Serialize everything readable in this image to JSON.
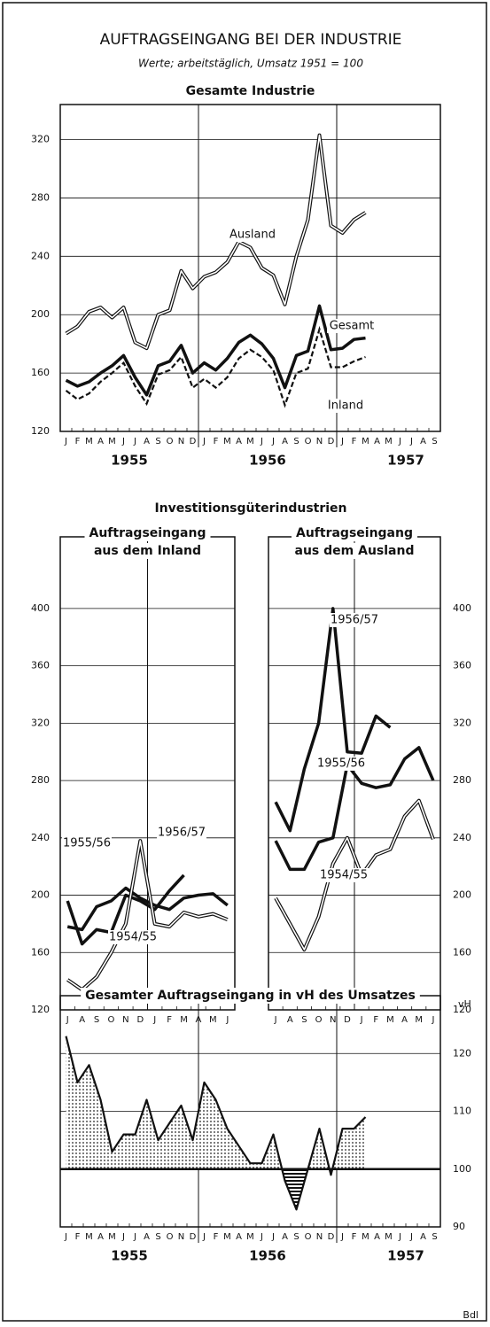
{
  "title": "AUFTRAGSEINGANG BEI DER INDUSTRIE",
  "subtitle": "Werte; arbeitstäglich, Umsatz 1951 = 100",
  "section_title": "Investitionsgüterindustrien",
  "source": "Bdl",
  "chart_data": [
    {
      "type": "line",
      "title": [
        "Gesamte Industrie"
      ],
      "categories": [
        "J",
        "F",
        "M",
        "A",
        "M",
        "J",
        "J",
        "A",
        "S",
        "O",
        "N",
        "D",
        "J",
        "F",
        "M",
        "A",
        "M",
        "J",
        "J",
        "A",
        "S",
        "O",
        "N",
        "D",
        "J",
        "F",
        "M",
        "A",
        "M",
        "J",
        "J",
        "A",
        "S"
      ],
      "years": [
        "1955",
        "1956",
        "1957"
      ],
      "ylim": [
        120,
        344
      ],
      "yticks": [
        120,
        160,
        200,
        240,
        280,
        320
      ],
      "yaxis_side": "left",
      "grid": true,
      "series": [
        {
          "name": "Ausland",
          "color": "#111111",
          "style": "double",
          "values": [
            187,
            192,
            202,
            205,
            198,
            205,
            181,
            177,
            200,
            203,
            230,
            218,
            226,
            229,
            236,
            250,
            246,
            232,
            227,
            207,
            240,
            265,
            323,
            261,
            256,
            265,
            270,
            null,
            null,
            null,
            null,
            null,
            null
          ]
        },
        {
          "name": "Gesamt",
          "color": "#111111",
          "style": "bold",
          "values": [
            155,
            151,
            154,
            160,
            165,
            172,
            157,
            145,
            165,
            168,
            179,
            160,
            167,
            162,
            170,
            181,
            186,
            180,
            170,
            150,
            172,
            175,
            206,
            176,
            177,
            183,
            184,
            null,
            null,
            null,
            null,
            null,
            null
          ]
        },
        {
          "name": "Inland",
          "color": "#111111",
          "style": "dashed",
          "values": [
            148,
            142,
            146,
            154,
            160,
            167,
            151,
            139,
            159,
            162,
            171,
            150,
            156,
            150,
            157,
            170,
            176,
            171,
            162,
            138,
            160,
            163,
            190,
            164,
            164,
            168,
            171,
            null,
            null,
            null,
            null,
            null,
            null
          ]
        }
      ]
    },
    {
      "type": "line",
      "title": [
        "Auftragseingang",
        "aus dem Inland"
      ],
      "categories": [
        "J",
        "A",
        "S",
        "O",
        "N",
        "D",
        "J",
        "F",
        "M",
        "A",
        "M",
        "J"
      ],
      "ylim": [
        120,
        450
      ],
      "yticks": [
        120,
        160,
        200,
        240,
        280,
        320,
        360,
        400
      ],
      "yaxis_side": "left",
      "grid": true,
      "series": [
        {
          "name": "1955/56",
          "color": "#111111",
          "style": "bold",
          "values": [
            178,
            176,
            192,
            196,
            205,
            198,
            193,
            190,
            198,
            200,
            201,
            193
          ]
        },
        {
          "name": "1956/57",
          "color": "#111111",
          "style": "bold",
          "values": [
            196,
            166,
            176,
            174,
            200,
            196,
            190,
            203,
            214,
            null,
            null,
            null
          ]
        },
        {
          "name": "1954/55",
          "color": "#111111",
          "style": "double",
          "values": [
            141,
            134,
            143,
            160,
            180,
            238,
            180,
            178,
            188,
            185,
            187,
            183
          ]
        }
      ]
    },
    {
      "type": "line",
      "title": [
        "Auftragseingang",
        "aus dem Ausland"
      ],
      "categories": [
        "J",
        "A",
        "S",
        "O",
        "N",
        "D",
        "J",
        "F",
        "M",
        "A",
        "M",
        "J"
      ],
      "ylim": [
        120,
        450
      ],
      "yticks": [
        120,
        160,
        200,
        240,
        280,
        320,
        360,
        400
      ],
      "yaxis_side": "right",
      "grid": true,
      "series": [
        {
          "name": "1956/57",
          "color": "#111111",
          "style": "bold",
          "values": [
            265,
            245,
            288,
            320,
            400,
            300,
            299,
            325,
            317,
            null,
            null,
            null
          ]
        },
        {
          "name": "1955/56",
          "color": "#111111",
          "style": "bold",
          "values": [
            238,
            218,
            218,
            237,
            240,
            291,
            278,
            275,
            277,
            295,
            303,
            280
          ]
        },
        {
          "name": "1954/55",
          "color": "#111111",
          "style": "double",
          "values": [
            198,
            180,
            162,
            185,
            222,
            240,
            214,
            228,
            232,
            255,
            266,
            239
          ]
        }
      ]
    },
    {
      "type": "area",
      "title": [
        "Gesamter Auftragseingang in vH des Umsatzes"
      ],
      "categories": [
        "J",
        "F",
        "M",
        "A",
        "M",
        "J",
        "J",
        "A",
        "S",
        "O",
        "N",
        "D",
        "J",
        "F",
        "M",
        "A",
        "M",
        "J",
        "J",
        "A",
        "S",
        "O",
        "N",
        "D",
        "J",
        "F",
        "M",
        "A",
        "M",
        "J",
        "J",
        "A",
        "S"
      ],
      "years": [
        "1955",
        "1956",
        "1957"
      ],
      "ylim": [
        90,
        130
      ],
      "yticks": [
        90,
        100,
        110,
        120
      ],
      "yaxis_side": "right",
      "y_unit_label": "vH",
      "grid": true,
      "baseline": 100,
      "color": "#111111",
      "values": [
        123,
        115,
        118,
        112,
        103,
        106,
        106,
        112,
        105,
        108,
        111,
        105,
        115,
        112,
        107,
        104,
        101,
        101,
        106,
        98,
        93,
        100,
        107,
        99,
        107,
        107,
        109,
        null,
        null,
        null,
        null,
        null,
        null
      ]
    }
  ]
}
